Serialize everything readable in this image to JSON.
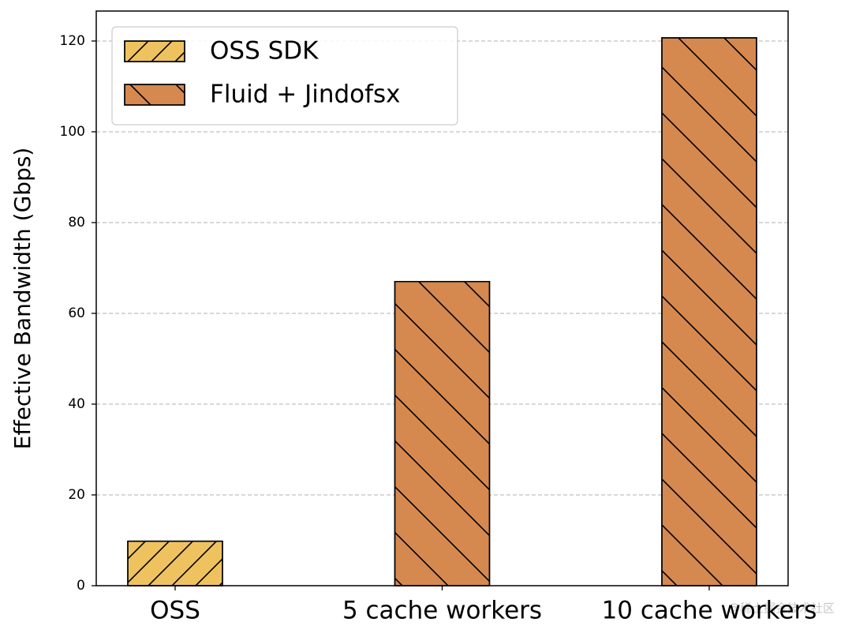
{
  "chart_data": {
    "type": "bar",
    "y_label": "Effective Bandwidth (Gbps)",
    "categories": [
      "OSS",
      "5 cache workers",
      "10 cache workers"
    ],
    "series": [
      {
        "name": "OSS SDK",
        "color": "#eec35f",
        "hatch": "/",
        "values": [
          9.8,
          null,
          null
        ]
      },
      {
        "name": "Fluid + Jindofsx",
        "color": "#d5894f",
        "hatch": "\\",
        "values": [
          null,
          67,
          120.7
        ]
      }
    ],
    "ylim": [
      0,
      126.6
    ],
    "yticks": [
      0,
      20,
      40,
      60,
      80,
      100,
      120
    ],
    "grid": true,
    "legend": "upper left",
    "watermark": "@稀土掘金技术社区"
  }
}
